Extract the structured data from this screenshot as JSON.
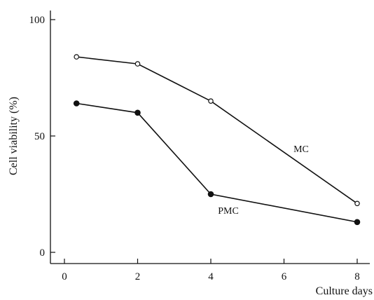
{
  "chart_data": {
    "type": "line",
    "title": "",
    "xlabel": "Culture days",
    "ylabel": "Cell viability (%)",
    "xlim": [
      -0.5,
      8.6
    ],
    "ylim": [
      -5,
      104
    ],
    "x_ticks": [
      0,
      2,
      4,
      6,
      8
    ],
    "y_ticks": [
      0,
      50,
      100
    ],
    "grid": false,
    "legend": "none",
    "series": [
      {
        "name": "MC",
        "marker": "open-circle",
        "x": [
          0.33,
          2,
          4,
          8
        ],
        "y": [
          84,
          81,
          65,
          21
        ]
      },
      {
        "name": "PMC",
        "marker": "filled-circle",
        "x": [
          0.33,
          2,
          4,
          8
        ],
        "y": [
          64,
          60,
          25,
          13
        ]
      }
    ]
  }
}
